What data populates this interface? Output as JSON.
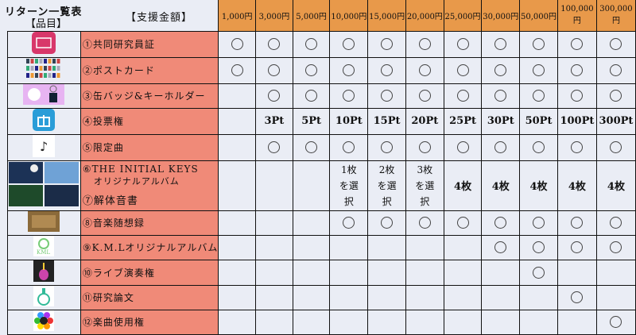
{
  "header": {
    "title": "リターン一覧表",
    "subtitle": "【品目】",
    "amount_label": "【支援金額】"
  },
  "amounts": [
    "1,000円",
    "3,000円",
    "5,000円",
    "10,000円",
    "15,000円",
    "20,000円",
    "25,000円",
    "30,000円",
    "50,000円",
    "100,000円",
    "300,000円"
  ],
  "rows": [
    {
      "label": "①共同研究員証",
      "icon": "card-icon",
      "cells": [
        "○",
        "○",
        "○",
        "○",
        "○",
        "○",
        "○",
        "○",
        "○",
        "○",
        "○"
      ]
    },
    {
      "label": "②ポストカード",
      "icon": "postcards-thumbnail",
      "cells": [
        "○",
        "○",
        "○",
        "○",
        "○",
        "○",
        "○",
        "○",
        "○",
        "○",
        "○"
      ]
    },
    {
      "label": "③缶バッジ&キーホルダー",
      "icon": "badge-keyholder-thumbnail",
      "cells": [
        "",
        "○",
        "○",
        "○",
        "○",
        "○",
        "○",
        "○",
        "○",
        "○",
        "○"
      ]
    },
    {
      "label": "④投票権",
      "icon": "gift-icon",
      "cells": [
        "",
        "3Pt",
        "5Pt",
        "10Pt",
        "15Pt",
        "20Pt",
        "25Pt",
        "30Pt",
        "50Pt",
        "100Pt",
        "300Pt"
      ]
    },
    {
      "label": "⑤限定曲",
      "icon": "music-note-icon",
      "cells": [
        "",
        "○",
        "○",
        "○",
        "○",
        "○",
        "○",
        "○",
        "○",
        "○",
        "○"
      ]
    },
    {
      "label": "⑥THE INITIAL KEYS",
      "label2": "オリジナルアルバム",
      "label3": "⑦解体音書",
      "icon": "album-covers-thumbnail",
      "cells": [
        "",
        "",
        "",
        "1枚を選択",
        "2枚を選択",
        "3枚を選択",
        "4枚",
        "4枚",
        "4枚",
        "4枚",
        "4枚"
      ]
    },
    {
      "label": "⑧音楽随想録",
      "icon": "essay-thumbnail",
      "cells": [
        "",
        "",
        "",
        "○",
        "○",
        "○",
        "○",
        "○",
        "○",
        "○",
        "○"
      ]
    },
    {
      "label": "⑨K.M.Lオリジナルアルバム",
      "icon": "kml-logo",
      "cells": [
        "",
        "",
        "",
        "",
        "",
        "",
        "",
        "○",
        "○",
        "○",
        "○"
      ]
    },
    {
      "label": "⑩ライブ演奏権",
      "icon": "violin-icon",
      "cells": [
        "",
        "",
        "",
        "",
        "",
        "",
        "",
        "",
        "○",
        "",
        ""
      ]
    },
    {
      "label": "⑪研究論文",
      "icon": "flask-icon",
      "cells": [
        "",
        "",
        "",
        "",
        "",
        "",
        "",
        "",
        "",
        "○",
        ""
      ]
    },
    {
      "label": "⑫楽曲使用権",
      "icon": "colorful-wheel-icon",
      "cells": [
        "",
        "",
        "",
        "",
        "",
        "",
        "",
        "",
        "",
        "",
        "○"
      ]
    }
  ],
  "colors": {
    "header": "#e8994a",
    "label": "#f08a78",
    "background": "#eaedf5"
  }
}
